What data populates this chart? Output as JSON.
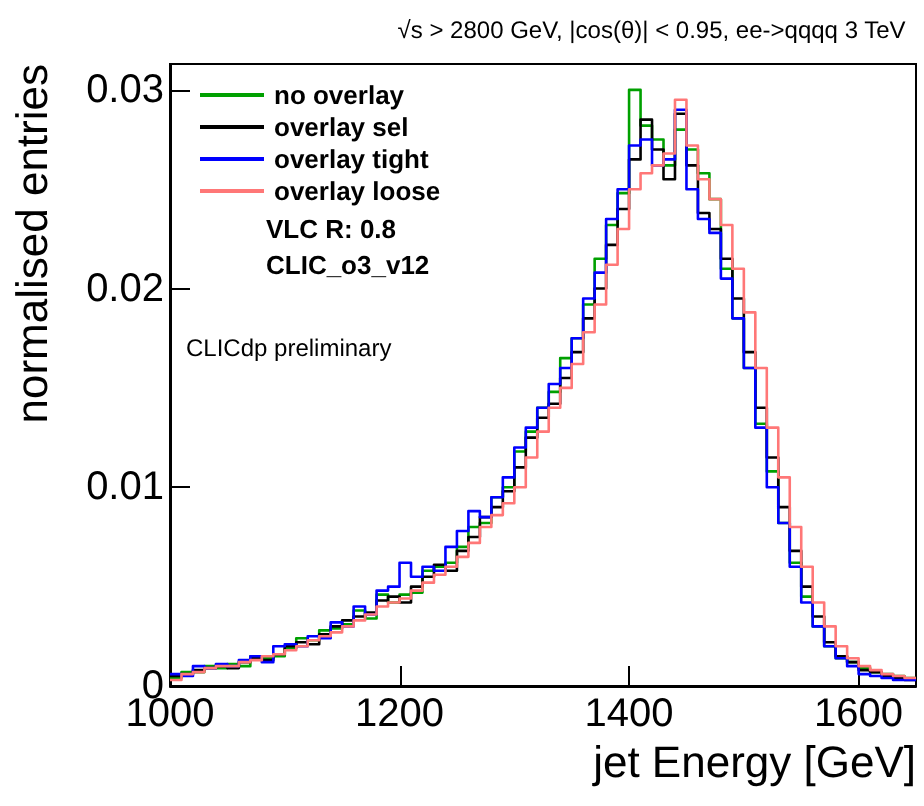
{
  "chart_data": {
    "type": "histogram",
    "title": "√s > 2800 GeV, |cos(θ)| < 0.95, ee->qqqq 3 TeV",
    "xlabel": "jet Energy [GeV]",
    "ylabel": "normalised entries",
    "annotations": [
      "VLC R: 0.8",
      "CLIC_o3_v12",
      "CLICdp preliminary"
    ],
    "bins": [
      1000,
      1010,
      1020,
      1030,
      1040,
      1050,
      1060,
      1070,
      1080,
      1090,
      1100,
      1110,
      1120,
      1130,
      1140,
      1150,
      1160,
      1170,
      1180,
      1190,
      1200,
      1210,
      1220,
      1230,
      1240,
      1250,
      1260,
      1270,
      1280,
      1290,
      1300,
      1310,
      1320,
      1330,
      1340,
      1350,
      1360,
      1370,
      1380,
      1390,
      1400,
      1410,
      1420,
      1430,
      1440,
      1450,
      1460,
      1470,
      1480,
      1490,
      1500,
      1510,
      1520,
      1530,
      1540,
      1550,
      1560,
      1570,
      1580,
      1590,
      1600,
      1610,
      1620,
      1630,
      1640,
      1650
    ],
    "series": [
      {
        "name": "no overlay",
        "color": "#00a000",
        "values": [
          0.0004,
          0.0007,
          0.0007,
          0.001,
          0.0009,
          0.0011,
          0.001,
          0.0015,
          0.0014,
          0.0015,
          0.0019,
          0.0024,
          0.0023,
          0.0028,
          0.0029,
          0.0031,
          0.0038,
          0.0034,
          0.0046,
          0.0042,
          0.0046,
          0.0047,
          0.0058,
          0.006,
          0.0062,
          0.007,
          0.008,
          0.0082,
          0.0095,
          0.01,
          0.0118,
          0.0128,
          0.014,
          0.0148,
          0.0165,
          0.0175,
          0.0192,
          0.0215,
          0.0232,
          0.0248,
          0.03,
          0.0282,
          0.0275,
          0.0262,
          0.028,
          0.027,
          0.0258,
          0.0245,
          0.021,
          0.0185,
          0.016,
          0.0132,
          0.0108,
          0.0082,
          0.0062,
          0.0045,
          0.003,
          0.002,
          0.0014,
          0.0012,
          0.0009,
          0.0007,
          0.0006,
          0.0005,
          0.0004
        ]
      },
      {
        "name": "overlay sel",
        "color": "#000000",
        "values": [
          0.0005,
          0.0006,
          0.0008,
          0.0009,
          0.001,
          0.0009,
          0.0012,
          0.0014,
          0.0013,
          0.0016,
          0.002,
          0.0022,
          0.0021,
          0.0026,
          0.003,
          0.0033,
          0.0035,
          0.0037,
          0.0043,
          0.0045,
          0.0042,
          0.005,
          0.0055,
          0.0061,
          0.0058,
          0.0068,
          0.0075,
          0.0085,
          0.009,
          0.0098,
          0.011,
          0.0125,
          0.0135,
          0.0142,
          0.0155,
          0.0168,
          0.0185,
          0.02,
          0.0222,
          0.024,
          0.0265,
          0.0285,
          0.027,
          0.0255,
          0.0288,
          0.0262,
          0.0238,
          0.023,
          0.0215,
          0.0195,
          0.0168,
          0.014,
          0.0115,
          0.009,
          0.0068,
          0.005,
          0.0035,
          0.0022,
          0.0015,
          0.0012,
          0.0008,
          0.0007,
          0.0005,
          0.0004,
          0.0003
        ]
      },
      {
        "name": "overlay tight",
        "color": "#0000ff",
        "values": [
          0.0006,
          0.0005,
          0.001,
          0.0009,
          0.0011,
          0.001,
          0.0013,
          0.0015,
          0.0012,
          0.002,
          0.0021,
          0.002,
          0.0025,
          0.0024,
          0.0032,
          0.003,
          0.004,
          0.0036,
          0.0048,
          0.005,
          0.0062,
          0.0055,
          0.006,
          0.0058,
          0.007,
          0.0078,
          0.0088,
          0.0085,
          0.0095,
          0.0105,
          0.012,
          0.013,
          0.014,
          0.0152,
          0.016,
          0.0175,
          0.0195,
          0.0208,
          0.0235,
          0.025,
          0.0272,
          0.0275,
          0.0262,
          0.0265,
          0.029,
          0.025,
          0.0235,
          0.0228,
          0.0205,
          0.0185,
          0.016,
          0.013,
          0.01,
          0.0082,
          0.006,
          0.0042,
          0.003,
          0.002,
          0.0014,
          0.001,
          0.0006,
          0.0005,
          0.0004,
          0.0003,
          0.0003
        ]
      },
      {
        "name": "overlay loose",
        "color": "#ff7777",
        "values": [
          0.0003,
          0.0006,
          0.0007,
          0.0009,
          0.001,
          0.001,
          0.0012,
          0.0013,
          0.0015,
          0.0016,
          0.0018,
          0.002,
          0.0023,
          0.0025,
          0.0027,
          0.003,
          0.0033,
          0.0036,
          0.004,
          0.0042,
          0.0044,
          0.0048,
          0.0052,
          0.0056,
          0.006,
          0.0065,
          0.0072,
          0.008,
          0.0086,
          0.0092,
          0.01,
          0.0115,
          0.0128,
          0.014,
          0.015,
          0.0162,
          0.0178,
          0.0192,
          0.0212,
          0.023,
          0.025,
          0.0258,
          0.0262,
          0.0268,
          0.0295,
          0.0272,
          0.0255,
          0.0245,
          0.0232,
          0.021,
          0.0188,
          0.016,
          0.013,
          0.0105,
          0.008,
          0.006,
          0.0042,
          0.003,
          0.002,
          0.0014,
          0.001,
          0.0008,
          0.0006,
          0.0005,
          0.0004
        ]
      }
    ],
    "xlim": [
      1000,
      1650
    ],
    "xticks": [
      1000,
      1200,
      1400,
      1600
    ],
    "ylim": [
      0,
      0.0313
    ],
    "yticks": [
      0,
      0.01,
      0.02,
      0.03
    ],
    "grid": false,
    "legend": "top left"
  }
}
